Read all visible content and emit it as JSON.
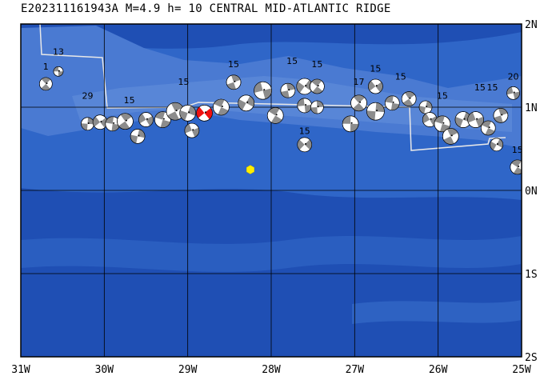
{
  "header": {
    "title": "E202311161943A M=4.9 h= 10 CENTRAL MID-ATLANTIC RIDGE"
  },
  "map": {
    "region": "CENTRAL MID-ATLANTIC RIDGE",
    "lon_range": [
      -31,
      -25
    ],
    "lat_range": [
      -2,
      2
    ],
    "x_ticks": [
      "31W",
      "30W",
      "29W",
      "28W",
      "27W",
      "26W",
      "25W"
    ],
    "y_ticks": [
      "2N",
      "1N",
      "0N",
      "1S",
      "2S"
    ],
    "colors": {
      "ocean_deep": "#1f4fb4",
      "ocean_mid": "#2f66c8",
      "ocean_shallow": "#5a88d8",
      "plate_boundary": "#e8e8e8",
      "grid": "#000000",
      "event_marker": "#ffee00",
      "highlight_mechanism": "#ee1111",
      "mechanism_fill": "#8c8c8c"
    },
    "main_event": {
      "lon": -28.25,
      "lat": 0.25,
      "magnitude": 4.9,
      "depth_km": 10
    },
    "highlight_event": {
      "lon": -28.8,
      "lat": 0.93
    },
    "depth_labels": [
      {
        "text": "13",
        "lon": -30.55,
        "lat": 1.63
      },
      {
        "text": "1",
        "lon": -30.7,
        "lat": 1.45
      },
      {
        "text": "29",
        "lon": -30.2,
        "lat": 1.1
      },
      {
        "text": "15",
        "lon": -29.7,
        "lat": 1.05
      },
      {
        "text": "15",
        "lon": -29.05,
        "lat": 1.27
      },
      {
        "text": "15",
        "lon": -28.45,
        "lat": 1.48
      },
      {
        "text": "15",
        "lon": -27.75,
        "lat": 1.52
      },
      {
        "text": "15",
        "lon": -27.45,
        "lat": 1.48
      },
      {
        "text": "15",
        "lon": -27.6,
        "lat": 0.68
      },
      {
        "text": "17",
        "lon": -26.95,
        "lat": 1.27
      },
      {
        "text": "15",
        "lon": -26.75,
        "lat": 1.43
      },
      {
        "text": "15",
        "lon": -26.45,
        "lat": 1.33
      },
      {
        "text": "15",
        "lon": -25.95,
        "lat": 1.1
      },
      {
        "text": "15",
        "lon": -25.5,
        "lat": 1.2
      },
      {
        "text": "15",
        "lon": -25.35,
        "lat": 1.2
      },
      {
        "text": "20",
        "lon": -25.1,
        "lat": 1.33
      },
      {
        "text": "15",
        "lon": -25.05,
        "lat": 0.45
      }
    ],
    "mechanisms": [
      {
        "lon": -30.55,
        "lat": 1.43,
        "r": 6
      },
      {
        "lon": -30.7,
        "lat": 1.28,
        "r": 8
      },
      {
        "lon": -30.2,
        "lat": 0.8,
        "r": 8
      },
      {
        "lon": -30.05,
        "lat": 0.82,
        "r": 9
      },
      {
        "lon": -29.9,
        "lat": 0.8,
        "r": 9
      },
      {
        "lon": -29.75,
        "lat": 0.83,
        "r": 10
      },
      {
        "lon": -29.6,
        "lat": 0.65,
        "r": 9
      },
      {
        "lon": -29.5,
        "lat": 0.85,
        "r": 9
      },
      {
        "lon": -29.3,
        "lat": 0.85,
        "r": 10
      },
      {
        "lon": -29.15,
        "lat": 0.95,
        "r": 11
      },
      {
        "lon": -29.0,
        "lat": 0.93,
        "r": 10
      },
      {
        "lon": -28.95,
        "lat": 0.72,
        "r": 9
      },
      {
        "lon": -28.6,
        "lat": 1.0,
        "r": 10
      },
      {
        "lon": -28.45,
        "lat": 1.3,
        "r": 9
      },
      {
        "lon": -28.3,
        "lat": 1.05,
        "r": 10
      },
      {
        "lon": -28.1,
        "lat": 1.2,
        "r": 11
      },
      {
        "lon": -27.95,
        "lat": 0.9,
        "r": 10
      },
      {
        "lon": -27.8,
        "lat": 1.2,
        "r": 9
      },
      {
        "lon": -27.6,
        "lat": 1.25,
        "r": 10
      },
      {
        "lon": -27.6,
        "lat": 1.02,
        "r": 9
      },
      {
        "lon": -27.45,
        "lat": 1.25,
        "r": 9
      },
      {
        "lon": -27.45,
        "lat": 1.0,
        "r": 8
      },
      {
        "lon": -27.6,
        "lat": 0.55,
        "r": 9
      },
      {
        "lon": -27.05,
        "lat": 0.8,
        "r": 10
      },
      {
        "lon": -26.95,
        "lat": 1.05,
        "r": 10
      },
      {
        "lon": -26.75,
        "lat": 0.95,
        "r": 11
      },
      {
        "lon": -26.75,
        "lat": 1.25,
        "r": 9
      },
      {
        "lon": -26.55,
        "lat": 1.05,
        "r": 9
      },
      {
        "lon": -26.35,
        "lat": 1.1,
        "r": 9
      },
      {
        "lon": -26.15,
        "lat": 1.0,
        "r": 8
      },
      {
        "lon": -26.1,
        "lat": 0.85,
        "r": 9
      },
      {
        "lon": -25.95,
        "lat": 0.8,
        "r": 10
      },
      {
        "lon": -25.85,
        "lat": 0.65,
        "r": 10
      },
      {
        "lon": -25.7,
        "lat": 0.85,
        "r": 10
      },
      {
        "lon": -25.55,
        "lat": 0.85,
        "r": 10
      },
      {
        "lon": -25.4,
        "lat": 0.75,
        "r": 9
      },
      {
        "lon": -25.25,
        "lat": 0.9,
        "r": 9
      },
      {
        "lon": -25.3,
        "lat": 0.55,
        "r": 8
      },
      {
        "lon": -25.1,
        "lat": 1.17,
        "r": 8
      },
      {
        "lon": -25.05,
        "lat": 0.28,
        "r": 9
      }
    ]
  }
}
